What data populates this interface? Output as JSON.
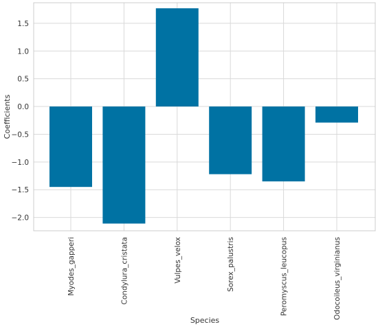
{
  "chart_data": {
    "type": "bar",
    "title": "",
    "xlabel": "Species",
    "ylabel": "Coefficients",
    "categories": [
      "Myodes_gapperi",
      "Condylura_cristata",
      "Vulpes_velox",
      "Sorex_palustris",
      "Peromyscus_leucopus",
      "Odocoileus_virginianus"
    ],
    "values": [
      -1.45,
      -2.11,
      1.77,
      -1.22,
      -1.35,
      -0.29
    ],
    "ylim": [
      -2.24,
      1.87
    ],
    "yticks": [
      -2.0,
      -1.5,
      -1.0,
      -0.5,
      0.0,
      0.5,
      1.0,
      1.5
    ],
    "ytick_labels": [
      "−2.0",
      "−1.5",
      "−1.0",
      "−0.5",
      "0.0",
      "0.5",
      "1.0",
      "1.5"
    ],
    "grid": true,
    "bar_color": "#0072a3",
    "grid_color": "#d9d9d9",
    "frame_color": "#cccccc"
  }
}
